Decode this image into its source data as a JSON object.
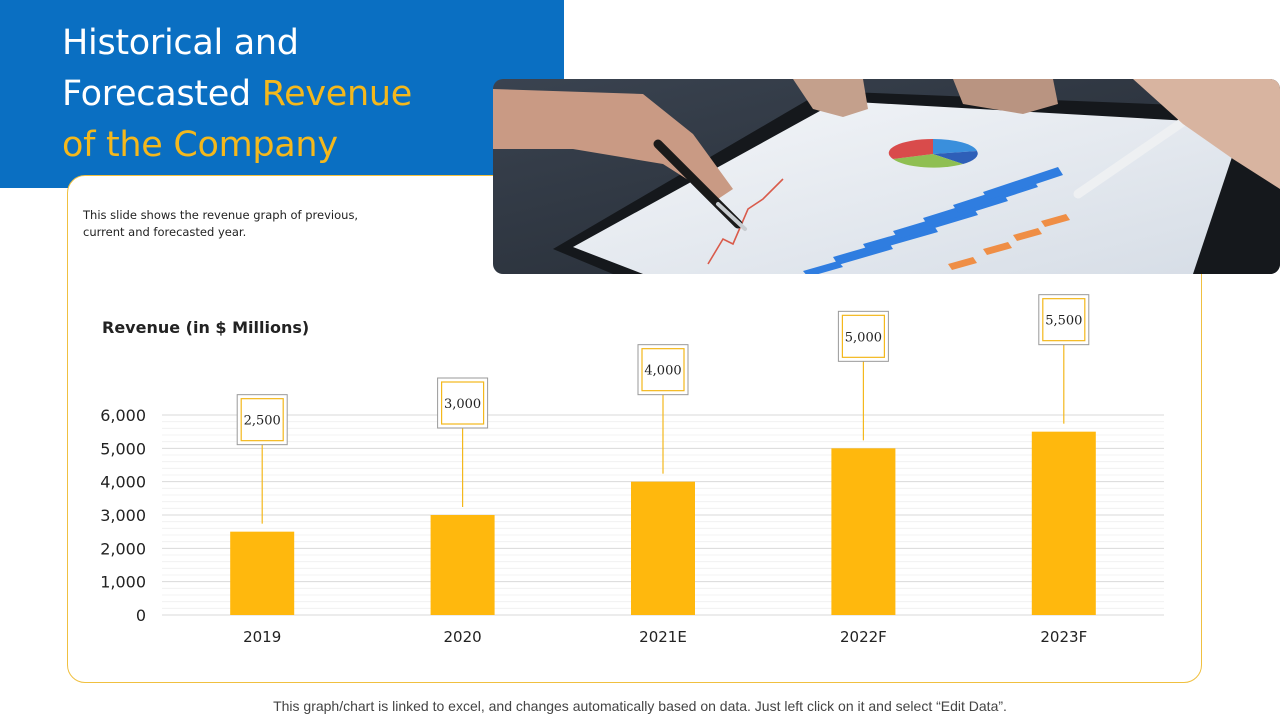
{
  "slide": {
    "title_line1": "Historical and",
    "title_line2_plain": "Forecasted ",
    "title_line2_accent": "Revenue",
    "title_line3_accent": "of the Company",
    "description": "This slide shows the revenue graph of previous, current and forecasted year.",
    "footer_note": "This graph/chart is linked to excel, and changes automatically based on data. Just left click on it and select “Edit Data”."
  },
  "colors": {
    "title_block": "#0a6fc2",
    "accent": "#f4b81c",
    "bar": "#ffb80d",
    "gridline": "#e3e3e3"
  },
  "photo": {
    "icon": "business-chart-photo"
  },
  "chart_data": {
    "type": "bar",
    "title": "Revenue  (in $ Millions)",
    "categories": [
      "2019",
      "2020",
      "2021E",
      "2022F",
      "2023F"
    ],
    "values": [
      2500,
      3000,
      4000,
      5000,
      5500
    ],
    "value_labels": [
      "2,500",
      "3,000",
      "4,000",
      "5,000",
      "5,500"
    ],
    "ylim": [
      0,
      6000
    ],
    "yticks": [
      0,
      1000,
      2000,
      3000,
      4000,
      5000,
      6000
    ],
    "ytick_labels": [
      "0",
      "1,000",
      "2,000",
      "3,000",
      "4,000",
      "5,000",
      "6,000"
    ],
    "grid": true,
    "legend": "none"
  }
}
